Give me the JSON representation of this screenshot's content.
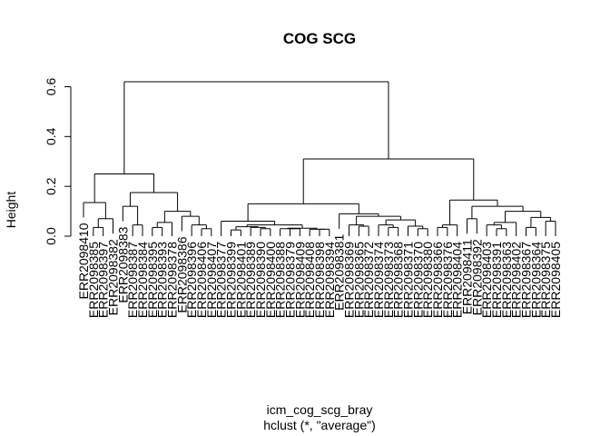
{
  "chart_data": {
    "type": "dendrogram",
    "title": "COG SCG",
    "ylabel": "Height",
    "xlabel": "icm_cog_scg_bray",
    "sublabel": "hclust (*, \"average\")",
    "ylim": [
      0,
      0.62
    ],
    "yticks": [
      0.0,
      0.2,
      0.4,
      0.6
    ],
    "ytick_labels": [
      "0.0",
      "0.2",
      "0.4",
      "0.6"
    ],
    "leaves": [
      "ERR2098410",
      "ERR2098385",
      "ERR2098397",
      "ERR2098382",
      "ERR2098383",
      "ERR2098387",
      "ERR2098384",
      "ERR2098395",
      "ERR2098393",
      "ERR2098378",
      "ERR2098386",
      "ERR2098396",
      "ERR2098406",
      "ERR2098407",
      "ERR2098377",
      "ERR2098399",
      "ERR2098401",
      "ERR2098389",
      "ERR2098390",
      "ERR2098400",
      "ERR2098388",
      "ERR2098379",
      "ERR2098409",
      "ERR2098408",
      "ERR2098398",
      "ERR2098394",
      "ERR2098381",
      "ERR2098369",
      "ERR2098365",
      "ERR2098372",
      "ERR2098374",
      "ERR2098373",
      "ERR2098368",
      "ERR2098371",
      "ERR2098370",
      "ERR2098380",
      "ERR2098366",
      "ERR2098376",
      "ERR2098404",
      "ERR2098411",
      "ERR2098392",
      "ERR2098403",
      "ERR2098391",
      "ERR2098363",
      "ERR2098402",
      "ERR2098367",
      "ERR2098364",
      "ERR2098375",
      "ERR2098405"
    ],
    "tree": {
      "h": 0.62,
      "children": [
        {
          "h": 0.25,
          "children": [
            {
              "h": 0.135,
              "children": [
                {
                  "leaf": 0
                },
                {
                  "h": 0.07,
                  "children": [
                    {
                      "h": 0.035,
                      "children": [
                        {
                          "leaf": 1
                        },
                        {
                          "leaf": 2
                        }
                      ]
                    },
                    {
                      "leaf": 3
                    }
                  ]
                }
              ]
            },
            {
              "h": 0.175,
              "children": [
                {
                  "h": 0.12,
                  "children": [
                    {
                      "leaf": 4
                    },
                    {
                      "h": 0.045,
                      "children": [
                        {
                          "leaf": 5
                        },
                        {
                          "leaf": 6
                        }
                      ]
                    }
                  ]
                },
                {
                  "h": 0.1,
                  "children": [
                    {
                      "h": 0.055,
                      "children": [
                        {
                          "h": 0.035,
                          "children": [
                            {
                              "leaf": 7
                            },
                            {
                              "leaf": 8
                            }
                          ]
                        },
                        {
                          "leaf": 9
                        }
                      ]
                    },
                    {
                      "h": 0.08,
                      "children": [
                        {
                          "leaf": 10
                        },
                        {
                          "h": 0.045,
                          "children": [
                            {
                              "leaf": 11
                            },
                            {
                              "h": 0.03,
                              "children": [
                                {
                                  "leaf": 12
                                },
                                {
                                  "leaf": 13
                                }
                              ]
                            }
                          ]
                        }
                      ]
                    }
                  ]
                }
              ]
            }
          ]
        },
        {
          "h": 0.31,
          "children": [
            {
              "h": 0.13,
              "children": [
                {
                  "h": 0.06,
                  "children": [
                    {
                      "leaf": 14
                    },
                    {
                      "h": 0.045,
                      "children": [
                        {
                          "h": 0.038,
                          "children": [
                            {
                              "h": 0.025,
                              "children": [
                                {
                                  "leaf": 15
                                },
                                {
                                  "leaf": 16
                                }
                              ]
                            },
                            {
                              "h": 0.035,
                              "children": [
                                {
                                  "leaf": 17
                                },
                                {
                                  "h": 0.03,
                                  "children": [
                                    {
                                      "leaf": 18
                                    },
                                    {
                                      "leaf": 19
                                    }
                                  ]
                                }
                              ]
                            }
                          ]
                        },
                        {
                          "h": 0.032,
                          "children": [
                            {
                              "h": 0.03,
                              "children": [
                                {
                                  "leaf": 20
                                },
                                {
                                  "h": 0.03,
                                  "children": [
                                    {
                                      "leaf": 21
                                    },
                                    {
                                      "leaf": 22
                                    }
                                  ]
                                }
                              ]
                            },
                            {
                              "h": 0.028,
                              "children": [
                                {
                                  "leaf": 23
                                },
                                {
                                  "h": 0.028,
                                  "children": [
                                    {
                                      "leaf": 24
                                    },
                                    {
                                      "leaf": 25
                                    }
                                  ]
                                }
                              ]
                            }
                          ]
                        }
                      ]
                    }
                  ]
                },
                {
                  "h": 0.09,
                  "children": [
                    {
                      "leaf": 26
                    },
                    {
                      "h": 0.08,
                      "children": [
                        {
                          "h": 0.045,
                          "children": [
                            {
                              "leaf": 27
                            },
                            {
                              "h": 0.04,
                              "children": [
                                {
                                  "leaf": 28
                                },
                                {
                                  "leaf": 29
                                }
                              ]
                            }
                          ]
                        },
                        {
                          "h": 0.065,
                          "children": [
                            {
                              "h": 0.045,
                              "children": [
                                {
                                  "leaf": 30
                                },
                                {
                                  "h": 0.035,
                                  "children": [
                                    {
                                      "leaf": 31
                                    },
                                    {
                                      "leaf": 32
                                    }
                                  ]
                                }
                              ]
                            },
                            {
                              "h": 0.04,
                              "children": [
                                {
                                  "leaf": 33
                                },
                                {
                                  "h": 0.03,
                                  "children": [
                                    {
                                      "leaf": 34
                                    },
                                    {
                                      "leaf": 35
                                    }
                                  ]
                                }
                              ]
                            }
                          ]
                        }
                      ]
                    }
                  ]
                }
              ]
            },
            {
              "h": 0.145,
              "children": [
                {
                  "h": 0.045,
                  "children": [
                    {
                      "h": 0.035,
                      "children": [
                        {
                          "leaf": 36
                        },
                        {
                          "leaf": 37
                        }
                      ]
                    },
                    {
                      "leaf": 38
                    }
                  ]
                },
                {
                  "h": 0.12,
                  "children": [
                    {
                      "h": 0.07,
                      "children": [
                        {
                          "leaf": 39
                        },
                        {
                          "leaf": 40
                        }
                      ]
                    },
                    {
                      "h": 0.1,
                      "children": [
                        {
                          "h": 0.055,
                          "children": [
                            {
                              "h": 0.045,
                              "children": [
                                {
                                  "leaf": 41
                                },
                                {
                                  "h": 0.03,
                                  "children": [
                                    {
                                      "leaf": 42
                                    },
                                    {
                                      "leaf": 43
                                    }
                                  ]
                                }
                              ]
                            },
                            {
                              "leaf": 44
                            }
                          ]
                        },
                        {
                          "h": 0.075,
                          "children": [
                            {
                              "h": 0.035,
                              "children": [
                                {
                                  "leaf": 45
                                },
                                {
                                  "leaf": 46
                                }
                              ]
                            },
                            {
                              "h": 0.06,
                              "children": [
                                {
                                  "leaf": 47
                                },
                                {
                                  "leaf": 48
                                }
                              ]
                            }
                          ]
                        }
                      ]
                    }
                  ]
                }
              ]
            }
          ]
        }
      ]
    }
  }
}
